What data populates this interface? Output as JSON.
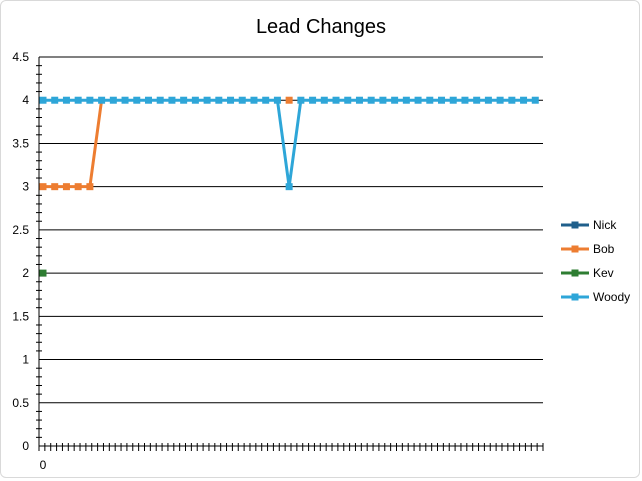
{
  "chart_data": {
    "type": "line",
    "title": "Lead Changes",
    "xlabel": "",
    "ylabel": "",
    "ylim": [
      0,
      4.5
    ],
    "y_ticks": [
      "0",
      "0.5",
      "1",
      "1.5",
      "2",
      "2.5",
      "3",
      "3.5",
      "4",
      "4.5"
    ],
    "x_tick_labels": [
      "0"
    ],
    "x_count": 43,
    "grid": true,
    "legend_position": "right",
    "series": [
      {
        "name": "Nick",
        "color": "#1f5f8b",
        "values": [
          null,
          null,
          null,
          null,
          null,
          null,
          null,
          null,
          null,
          null,
          null,
          null,
          null,
          null,
          null,
          null,
          null,
          null,
          null,
          null,
          null,
          null,
          null,
          null,
          null,
          null,
          null,
          null,
          null,
          null,
          null,
          null,
          null,
          null,
          null,
          null,
          null,
          null,
          null,
          null,
          null,
          null,
          null
        ]
      },
      {
        "name": "Bob",
        "color": "#ed7d31",
        "values": [
          3,
          3,
          3,
          3,
          3,
          null,
          null,
          null,
          null,
          null,
          null,
          null,
          null,
          null,
          null,
          null,
          null,
          null,
          null,
          null,
          null,
          4,
          null,
          null,
          null,
          null,
          null,
          null,
          null,
          null,
          null,
          null,
          null,
          null,
          null,
          null,
          null,
          null,
          null,
          null,
          null,
          null,
          null
        ]
      },
      {
        "name": "Kev",
        "color": "#2e7d32",
        "values": [
          2,
          null,
          null,
          null,
          null,
          null,
          null,
          null,
          null,
          null,
          null,
          null,
          null,
          null,
          null,
          null,
          null,
          null,
          null,
          null,
          null,
          null,
          null,
          null,
          null,
          null,
          null,
          null,
          null,
          null,
          null,
          null,
          null,
          null,
          null,
          null,
          null,
          null,
          null,
          null,
          null,
          null,
          null
        ]
      },
      {
        "name": "Woody",
        "color": "#2ea6d8",
        "values": [
          4,
          4,
          4,
          4,
          4,
          4,
          4,
          4,
          4,
          4,
          4,
          4,
          4,
          4,
          4,
          4,
          4,
          4,
          4,
          4,
          4,
          3,
          4,
          4,
          4,
          4,
          4,
          4,
          4,
          4,
          4,
          4,
          4,
          4,
          4,
          4,
          4,
          4,
          4,
          4,
          4,
          4,
          4
        ]
      }
    ],
    "bob_lead_segment": {
      "x": [
        0,
        1,
        2,
        3,
        4,
        5
      ],
      "y": [
        3,
        3,
        3,
        3,
        3,
        4
      ]
    }
  }
}
